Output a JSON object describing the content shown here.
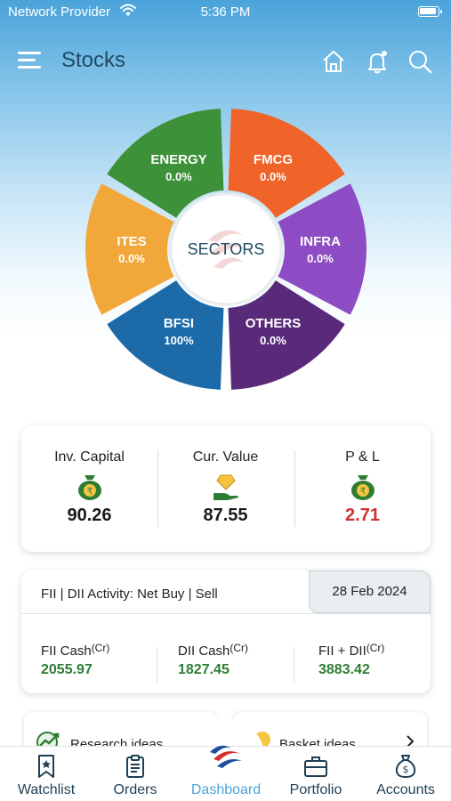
{
  "status_bar": {
    "carrier": "Network Provider",
    "time": "5:36 PM"
  },
  "header": {
    "title": "Stocks",
    "icons": [
      "menu-icon",
      "home-icon",
      "bell-icon",
      "search-icon"
    ]
  },
  "sectors": {
    "center_label": "SECTORS",
    "items": [
      {
        "name": "ENERGY",
        "value": "0.0%",
        "color": "#3d9138"
      },
      {
        "name": "FMCG",
        "value": "0.0%",
        "color": "#f0642a"
      },
      {
        "name": "INFRA",
        "value": "0.0%",
        "color": "#8e4cc4"
      },
      {
        "name": "OTHERS",
        "value": "0.0%",
        "color": "#5a2a7a"
      },
      {
        "name": "BFSI",
        "value": "100%",
        "color": "#1d6aa8"
      },
      {
        "name": "ITES",
        "value": "0.0%",
        "color": "#f2a73a"
      }
    ]
  },
  "summary": {
    "inv_capital_label": "Inv. Capital",
    "inv_capital_value": "90.26",
    "cur_value_label": "Cur. Value",
    "cur_value_value": "87.55",
    "pnl_label": "P & L",
    "pnl_value": "2.71",
    "pnl_color": "#d32f2f"
  },
  "fii_dii": {
    "heading": "FII | DII Activity: Net Buy | Sell",
    "date": "28 Feb 2024",
    "fii_label": "FII Cash",
    "dii_label": "DII Cash",
    "sum_label": "FII + DII",
    "unit": "(Cr)",
    "fii_value": "2055.97",
    "dii_value": "1827.45",
    "sum_value": "3883.42"
  },
  "ideas": {
    "research_label": "Research ideas",
    "basket_label": "Basket ideas"
  },
  "tabs": {
    "watchlist": "Watchlist",
    "orders": "Orders",
    "dashboard": "Dashboard",
    "portfolio": "Portfolio",
    "accounts": "Accounts"
  },
  "colors": {
    "accent": "#4aa3d9",
    "title": "#1f4a63",
    "positive": "#2e7d32"
  }
}
